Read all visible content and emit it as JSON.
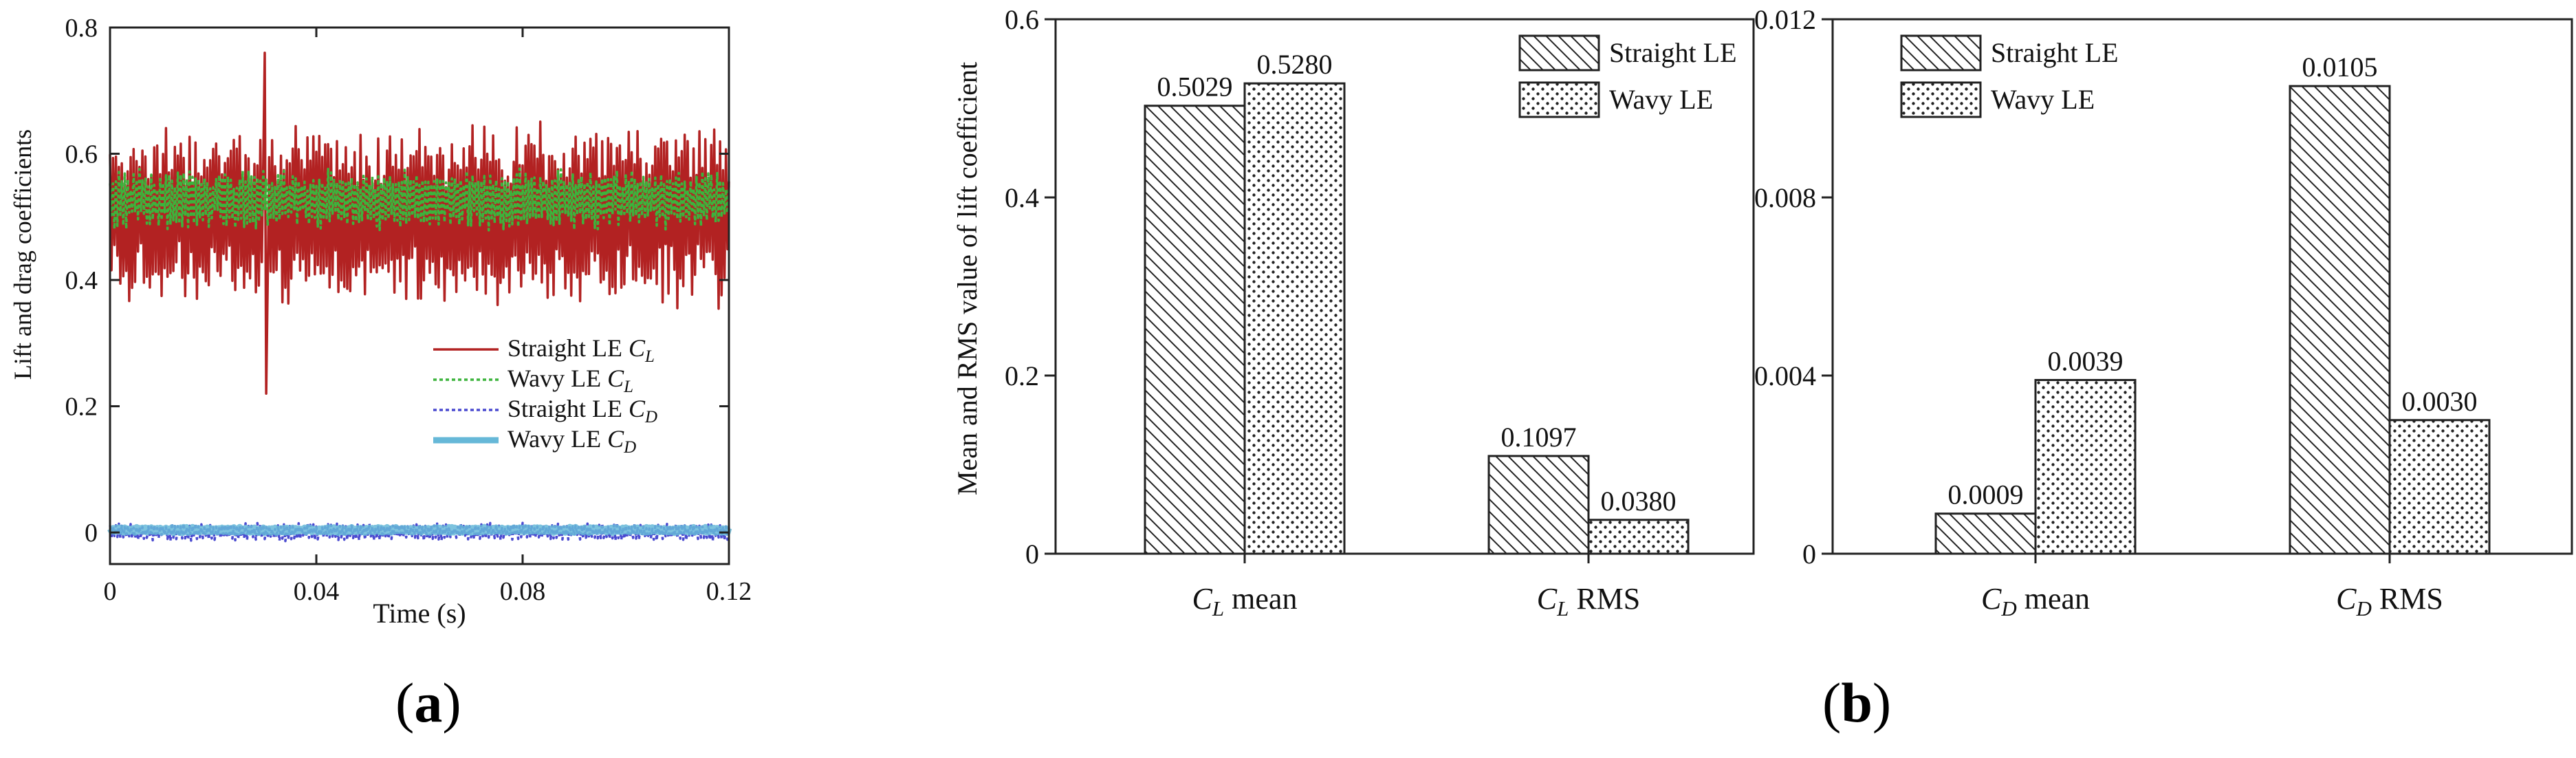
{
  "panel_labels": {
    "a": "a",
    "b": "b"
  },
  "chart_data": [
    {
      "type": "line",
      "panel": "a",
      "xlabel": "Time (s)",
      "ylabel": "Lift and drag coefficients",
      "xlim": [
        0,
        0.12
      ],
      "ylim": [
        -0.05,
        0.8
      ],
      "xticks": [
        "0",
        "0.04",
        "0.08",
        "0.12"
      ],
      "yticks": [
        "0",
        "0.2",
        "0.4",
        "0.6",
        "0.8"
      ],
      "legend_position": "lower-right",
      "series": [
        {
          "name": "Straight LE C_L",
          "label_main": "Straight LE ",
          "label_sub": "L",
          "color": "#b22222",
          "style": "solid",
          "mean": 0.503,
          "amplitude": 0.12,
          "min": 0.22,
          "max": 0.76,
          "period": 0.0012
        },
        {
          "name": "Wavy LE C_L",
          "label_main": "Wavy LE ",
          "label_sub": "L",
          "color": "#3cb43c",
          "style": "dotted",
          "mean": 0.528,
          "amplitude": 0.04,
          "min": 0.44,
          "max": 0.6,
          "period": 0.0012
        },
        {
          "name": "Straight LE C_D",
          "label_main": "Straight LE ",
          "label_sub": "D",
          "color": "#4a4ad0",
          "style": "dotted",
          "mean": 0.0009,
          "amplitude": 0.012,
          "min": -0.02,
          "max": 0.02,
          "period": 0.0012
        },
        {
          "name": "Wavy LE C_D",
          "label_main": "Wavy LE ",
          "label_sub": "D",
          "color": "#66b8d8",
          "style": "thick",
          "mean": 0.0039,
          "amplitude": 0.004,
          "min": -0.005,
          "max": 0.012,
          "period": 0.0012
        }
      ]
    },
    {
      "type": "bar",
      "panel": "b-left",
      "ylabel": "Mean and RMS value of lift coefficient",
      "ylim": [
        0,
        0.6
      ],
      "yticks": [
        "0",
        "0.2",
        "0.4",
        "0.6"
      ],
      "categories": [
        {
          "main": "C",
          "sub": "L",
          "rest": " mean"
        },
        {
          "main": "C",
          "sub": "L",
          "rest": " RMS"
        }
      ],
      "legend_position": "top-right",
      "series": [
        {
          "name": "Straight LE",
          "pattern": "hatch",
          "values": [
            0.5029,
            0.1097
          ],
          "labels": [
            "0.5029",
            "0.1097"
          ]
        },
        {
          "name": "Wavy LE",
          "pattern": "dots",
          "values": [
            0.528,
            0.038
          ],
          "labels": [
            "0.5280",
            "0.0380"
          ]
        }
      ]
    },
    {
      "type": "bar",
      "panel": "b-right",
      "ylim": [
        0,
        0.012
      ],
      "yticks": [
        "0",
        "0.004",
        "0.008",
        "0.012"
      ],
      "categories": [
        {
          "main": "C",
          "sub": "D",
          "rest": " mean"
        },
        {
          "main": "C",
          "sub": "D",
          "rest": " RMS"
        }
      ],
      "legend_position": "top-left",
      "series": [
        {
          "name": "Straight LE",
          "pattern": "hatch",
          "values": [
            0.0009,
            0.0105
          ],
          "labels": [
            "0.0009",
            "0.0105"
          ]
        },
        {
          "name": "Wavy LE",
          "pattern": "dots",
          "values": [
            0.0039,
            0.003
          ],
          "labels": [
            "0.0039",
            "0.0030"
          ]
        }
      ]
    }
  ]
}
